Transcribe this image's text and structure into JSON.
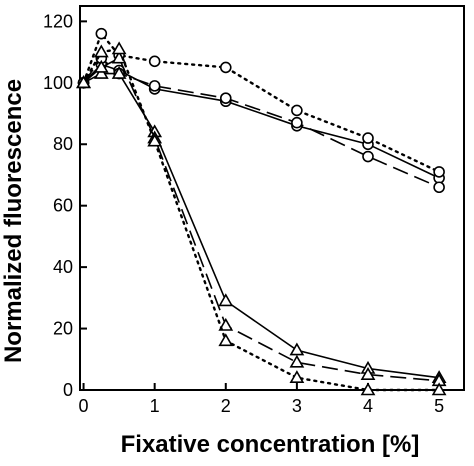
{
  "chart_data": {
    "type": "line",
    "title": "",
    "xlabel": "Fixative concentration [%]",
    "ylabel": "Normalized fluorescence",
    "xlim": [
      -0.05,
      5.35
    ],
    "ylim": [
      0,
      125
    ],
    "x_ticks": [
      0,
      1,
      2,
      3,
      4,
      5
    ],
    "y_ticks": [
      0,
      20,
      40,
      60,
      80,
      100,
      120
    ],
    "x_tick_labels": [
      "0",
      "1",
      "2",
      "3",
      "4",
      "5"
    ],
    "y_tick_labels": [
      "0",
      "20",
      "40",
      "60",
      "80",
      "100",
      "120"
    ],
    "grid": false,
    "legend": "none",
    "series": [
      {
        "marker": "circle",
        "line_style": "solid",
        "points": [
          [
            0,
            100
          ],
          [
            0.25,
            106
          ],
          [
            0.5,
            104
          ],
          [
            1,
            98
          ],
          [
            2,
            94
          ],
          [
            3,
            86
          ],
          [
            4,
            80
          ],
          [
            5,
            69
          ]
        ]
      },
      {
        "marker": "circle",
        "line_style": "dashed",
        "points": [
          [
            0,
            100
          ],
          [
            0.25,
            108
          ],
          [
            0.5,
            103
          ],
          [
            1,
            99
          ],
          [
            2,
            95
          ],
          [
            3,
            87
          ],
          [
            4,
            76
          ],
          [
            5,
            66
          ]
        ]
      },
      {
        "marker": "circle",
        "line_style": "dotted",
        "points": [
          [
            0,
            100
          ],
          [
            0.25,
            116
          ],
          [
            0.5,
            109
          ],
          [
            1,
            107
          ],
          [
            2,
            105
          ],
          [
            3,
            91
          ],
          [
            4,
            82
          ],
          [
            5,
            71
          ]
        ]
      },
      {
        "marker": "triangle",
        "line_style": "solid",
        "points": [
          [
            0,
            100
          ],
          [
            0.25,
            103
          ],
          [
            0.5,
            103
          ],
          [
            1,
            84
          ],
          [
            2,
            29
          ],
          [
            3,
            13
          ],
          [
            4,
            7
          ],
          [
            5,
            4
          ]
        ]
      },
      {
        "marker": "triangle",
        "line_style": "dashed",
        "points": [
          [
            0,
            100
          ],
          [
            0.25,
            105
          ],
          [
            0.5,
            108
          ],
          [
            1,
            82
          ],
          [
            2,
            21
          ],
          [
            3,
            9
          ],
          [
            4,
            5
          ],
          [
            5,
            3
          ]
        ]
      },
      {
        "marker": "triangle",
        "line_style": "dotted",
        "points": [
          [
            0,
            100
          ],
          [
            0.25,
            110
          ],
          [
            0.5,
            111
          ],
          [
            1,
            81
          ],
          [
            2,
            16
          ],
          [
            3,
            4
          ],
          [
            4,
            0
          ],
          [
            5,
            0
          ]
        ]
      }
    ]
  }
}
